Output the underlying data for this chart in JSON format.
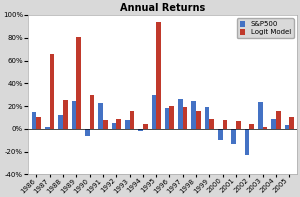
{
  "title": "Annual Returns",
  "years": [
    "1986",
    "1987",
    "1988",
    "1989",
    "1990",
    "1991",
    "1992",
    "1993",
    "1994",
    "1995",
    "1996",
    "1997",
    "1998",
    "1999",
    "2000",
    "2001",
    "2002",
    "2003",
    "2004",
    "2005"
  ],
  "sp500": [
    0.145,
    0.02,
    0.125,
    0.245,
    -0.065,
    0.23,
    0.055,
    0.075,
    -0.015,
    0.295,
    0.18,
    0.265,
    0.245,
    0.19,
    -0.1,
    -0.13,
    -0.23,
    0.235,
    0.09,
    0.03
  ],
  "logit": [
    0.105,
    0.655,
    0.25,
    0.81,
    0.3,
    0.075,
    0.09,
    0.155,
    0.045,
    0.935,
    0.2,
    0.195,
    0.16,
    0.085,
    0.08,
    0.065,
    0.04,
    0.02,
    0.155,
    0.1
  ],
  "sp500_color": "#4472C4",
  "logit_color": "#C0392B",
  "fig_background": "#D9D9D9",
  "plot_background": "#FFFFFF",
  "ylim": [
    -0.4,
    1.0
  ],
  "yticks": [
    -0.4,
    -0.2,
    0.0,
    0.2,
    0.4,
    0.6,
    0.8,
    1.0
  ],
  "title_fontsize": 7,
  "tick_fontsize": 5,
  "legend_fontsize": 5,
  "bar_width": 0.35
}
